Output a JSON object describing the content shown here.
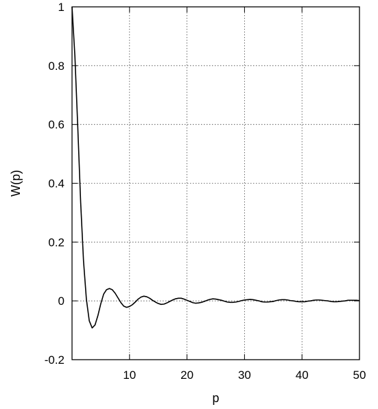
{
  "chart_data": {
    "type": "line",
    "title": "",
    "xlabel": "p",
    "ylabel": "W(p)",
    "xlim": [
      0,
      50
    ],
    "ylim": [
      -0.2,
      1
    ],
    "grid": true,
    "x_ticks": [
      10,
      20,
      30,
      40,
      50
    ],
    "y_ticks": [
      -0.2,
      0,
      0.2,
      0.4,
      0.6,
      0.8,
      1
    ],
    "x_tick_labels": [
      "10",
      "20",
      "30",
      "40",
      "50"
    ],
    "y_tick_labels": [
      "-0.2",
      "0",
      "0.2",
      "0.4",
      "0.6",
      "0.8",
      "1"
    ],
    "series": [
      {
        "color": "#000000",
        "x": [
          0,
          0.5,
          1,
          1.5,
          2,
          2.5,
          3,
          3.5,
          4,
          4.5,
          5,
          5.5,
          6,
          6.5,
          7,
          7.5,
          8,
          8.5,
          9,
          9.5,
          10,
          10.5,
          11,
          11.5,
          12,
          12.5,
          13,
          13.5,
          14,
          14.5,
          15,
          15.5,
          16,
          16.5,
          17,
          17.5,
          18,
          18.5,
          19,
          19.5,
          20,
          20.5,
          21,
          21.5,
          22,
          22.5,
          23,
          23.5,
          24,
          24.5,
          25,
          25.5,
          26,
          26.5,
          27,
          27.5,
          28,
          28.5,
          29,
          29.5,
          30,
          30.5,
          31,
          31.5,
          32,
          32.5,
          33,
          33.5,
          34,
          34.5,
          35,
          35.5,
          36,
          36.5,
          37,
          37.5,
          38,
          38.5,
          39,
          39.5,
          40,
          40.5,
          41,
          41.5,
          42,
          42.5,
          43,
          43.5,
          44,
          44.5,
          45,
          45.5,
          46,
          46.5,
          47,
          47.5,
          48,
          48.5,
          49,
          49.5,
          50
        ],
        "y": [
          1,
          0.832,
          0.59,
          0.335,
          0.135,
          0.005,
          -0.068,
          -0.092,
          -0.082,
          -0.05,
          -0.01,
          0.023,
          0.038,
          0.042,
          0.038,
          0.026,
          0.01,
          -0.006,
          -0.018,
          -0.022,
          -0.019,
          -0.013,
          -0.004,
          0.006,
          0.013,
          0.016,
          0.014,
          0.009,
          0.002,
          -0.004,
          -0.009,
          -0.012,
          -0.011,
          -0.007,
          -0.002,
          0.003,
          0.007,
          0.009,
          0.009,
          0.006,
          0.002,
          -0.002,
          -0.006,
          -0.008,
          -0.007,
          -0.005,
          -0.002,
          0.002,
          0.005,
          0.007,
          0.006,
          0.004,
          0.002,
          -0.001,
          -0.004,
          -0.005,
          -0.005,
          -0.004,
          -0.002,
          0.001,
          0.003,
          0.004,
          0.005,
          0.004,
          0.002,
          0,
          -0.003,
          -0.004,
          -0.004,
          -0.003,
          -0.002,
          0.001,
          0.003,
          0.004,
          0.004,
          0.003,
          0.001,
          0,
          -0.002,
          -0.003,
          -0.003,
          -0.003,
          -0.001,
          0,
          0.002,
          0.003,
          0.003,
          0.002,
          0.001,
          0,
          -0.002,
          -0.003,
          -0.003,
          -0.002,
          -0.001,
          0,
          0.002,
          0.002,
          0.002,
          0.002,
          0.001
        ]
      }
    ]
  }
}
